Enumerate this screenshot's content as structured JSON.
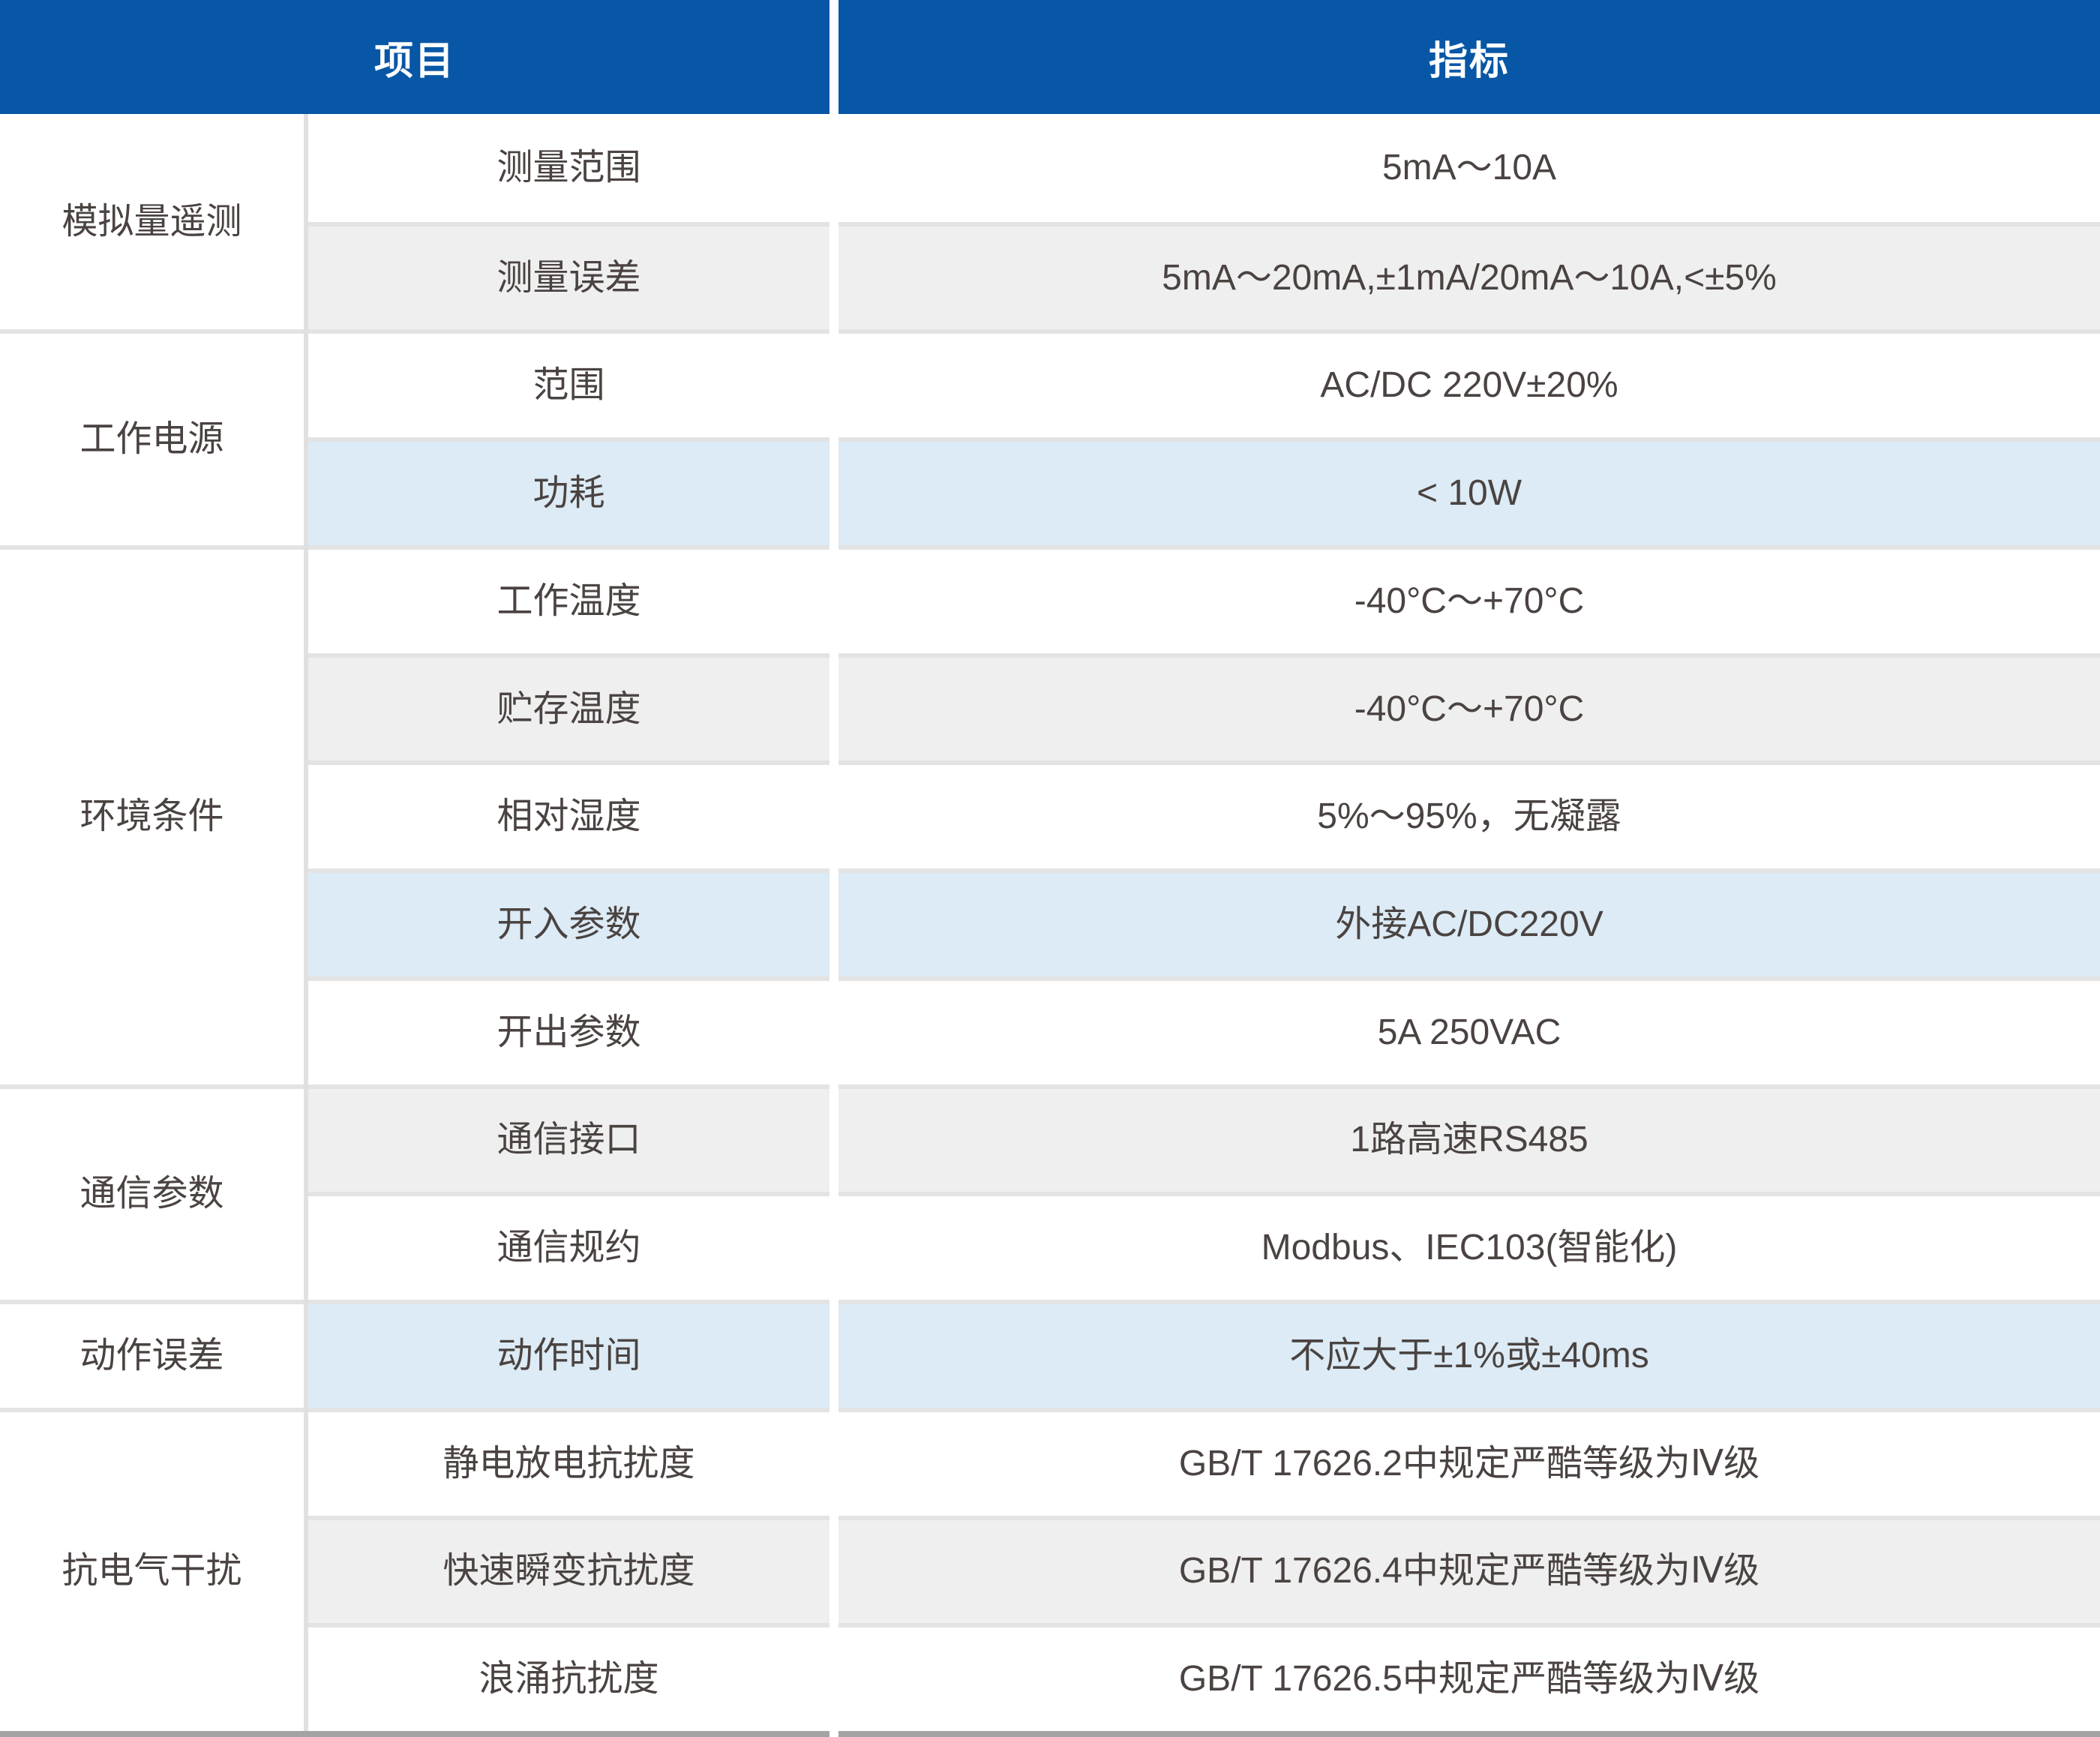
{
  "table": {
    "header": {
      "project": "项目",
      "indicator": "指标"
    },
    "colors": {
      "header_bg": "#0857a6",
      "header_text": "#ffffff",
      "row_gray": "#efefef",
      "row_blue": "#dcebf5",
      "row_white": "#ffffff",
      "divider": "#e0e0e1",
      "separator": "#e3e3e4",
      "bottom_border": "#a3a3a6",
      "text": "#4a4341"
    },
    "groups": [
      {
        "label": "模拟量遥测",
        "rows": [
          {
            "item": "测量范围",
            "value": "5mA～10A",
            "shade": "white"
          },
          {
            "item": "测量误差",
            "value": "5mA～20mA,±1mA/20mA～10A,<±5%",
            "shade": "gray"
          }
        ]
      },
      {
        "label": "工作电源",
        "rows": [
          {
            "item": "范围",
            "value": "AC/DC 220V±20%",
            "shade": "white"
          },
          {
            "item": "功耗",
            "value": "< 10W",
            "shade": "blue"
          }
        ]
      },
      {
        "label": "环境条件",
        "rows": [
          {
            "item": "工作温度",
            "value": "-40°C～+70°C",
            "shade": "white"
          },
          {
            "item": "贮存温度",
            "value": "-40°C～+70°C",
            "shade": "gray"
          },
          {
            "item": "相对湿度",
            "value": "5%～95%，无凝露",
            "shade": "white"
          },
          {
            "item": "开入参数",
            "value": "外接AC/DC220V",
            "shade": "blue"
          },
          {
            "item": "开出参数",
            "value": "5A 250VAC",
            "shade": "white"
          }
        ]
      },
      {
        "label": "通信参数",
        "rows": [
          {
            "item": "通信接口",
            "value": "1路高速RS485",
            "shade": "gray"
          },
          {
            "item": "通信规约",
            "value": "Modbus、IEC103(智能化)",
            "shade": "white"
          }
        ]
      },
      {
        "label": "动作误差",
        "rows": [
          {
            "item": "动作时间",
            "value": "不应大于±1%或±40ms",
            "shade": "blue"
          }
        ]
      },
      {
        "label": "抗电气干扰",
        "rows": [
          {
            "item": "静电放电抗扰度",
            "value": "GB/T 17626.2中规定严酷等级为Ⅳ级",
            "shade": "white"
          },
          {
            "item": "快速瞬变抗扰度",
            "value": "GB/T 17626.4中规定严酷等级为Ⅳ级",
            "shade": "gray"
          },
          {
            "item": "浪涌抗扰度",
            "value": "GB/T 17626.5中规定严酷等级为Ⅳ级",
            "shade": "white"
          }
        ]
      }
    ]
  }
}
